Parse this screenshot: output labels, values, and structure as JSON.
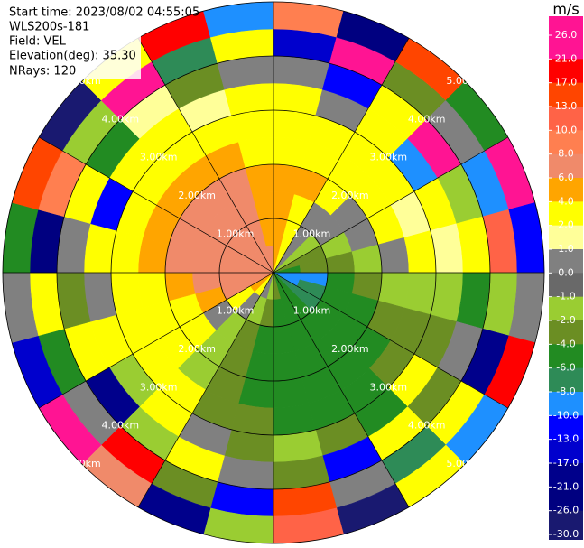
{
  "header": {
    "start_time": "Start time: 2023/08/02 04:55:05",
    "instrument": "WLS200s-181",
    "field": "Field: VEL",
    "elevation": "Elevation(deg): 35.30",
    "nrays": "NRays: 120"
  },
  "colorbar": {
    "unit": "m/s",
    "ticks": [
      {
        "value": 26,
        "label": "26.0"
      },
      {
        "value": 21,
        "label": "21.0"
      },
      {
        "value": 17,
        "label": "17.0"
      },
      {
        "value": 13,
        "label": "13.0"
      },
      {
        "value": 10,
        "label": "10.0"
      },
      {
        "value": 8,
        "label": "8.0"
      },
      {
        "value": 6,
        "label": "6.0"
      },
      {
        "value": 4,
        "label": "4.0"
      },
      {
        "value": 2,
        "label": "2.0"
      },
      {
        "value": 1,
        "label": "1.0"
      },
      {
        "value": 0,
        "label": "0.0"
      },
      {
        "value": -1,
        "label": "-1.0"
      },
      {
        "value": -2,
        "label": "-2.0"
      },
      {
        "value": -4,
        "label": "-4.0"
      },
      {
        "value": -6,
        "label": "-6.0"
      },
      {
        "value": -8,
        "label": "-8.0"
      },
      {
        "value": -10,
        "label": "-10.0"
      },
      {
        "value": -13,
        "label": "-13.0"
      },
      {
        "value": -17,
        "label": "-17.0"
      },
      {
        "value": -21,
        "label": "-21.0"
      },
      {
        "value": -26,
        "label": "-26.0"
      },
      {
        "value": -30,
        "label": "-30.0"
      }
    ],
    "colors": [
      "#ff1493",
      "#ff0000",
      "#ff4500",
      "#ff6347",
      "#ff7f50",
      "#f08a6a",
      "#ffa500",
      "#ffff00",
      "#ffff99",
      "#808080",
      "#696969",
      "#9acd32",
      "#6b8e23",
      "#228b22",
      "#2e8b57",
      "#1e90ff",
      "#0000ff",
      "#0000cd",
      "#00008b",
      "#000080",
      "#191970"
    ]
  },
  "range_rings": [
    {
      "value": 1,
      "label": "1.00km"
    },
    {
      "value": 2,
      "label": "2.00km"
    },
    {
      "value": 3,
      "label": "3.00km"
    },
    {
      "value": 4,
      "label": "4.00km"
    },
    {
      "value": 5,
      "label": "5.00km"
    }
  ],
  "field": {
    "values": [
      [
        5,
        3,
        0.5,
        -1.5,
        -3,
        -5,
        -9,
        -9,
        -7,
        -5,
        -5,
        -3,
        -1.5,
        0.5,
        3,
        5,
        7,
        7,
        7,
        7,
        7,
        7,
        7,
        7
      ],
      [
        5,
        3,
        0.5,
        -1.5,
        -3,
        -3,
        -9,
        -7,
        -7,
        -5,
        -5,
        -5,
        -3,
        -1.5,
        0.5,
        3,
        7,
        7,
        7,
        7,
        7,
        7,
        7,
        5
      ],
      [
        5,
        3,
        0.5,
        0.5,
        -1.5,
        -3,
        -5,
        -5,
        -5,
        -5,
        -5,
        -5,
        -5,
        -3,
        -1.5,
        0.5,
        5,
        7,
        7,
        7,
        7,
        7,
        7,
        5
      ],
      [
        5,
        5,
        3,
        0.5,
        0.5,
        -1.5,
        -3,
        -5,
        -5,
        -5,
        -5,
        -5,
        -5,
        -3,
        -1.5,
        3,
        3,
        5,
        7,
        7,
        7,
        7,
        7,
        5
      ],
      [
        3,
        3,
        3,
        3,
        3,
        0.5,
        -1.5,
        -3,
        -5,
        -5,
        -5,
        -5,
        -5,
        -3,
        -1.5,
        3,
        3,
        3,
        5,
        5,
        5,
        5,
        5,
        3
      ],
      [
        3,
        3,
        3,
        3,
        1.5,
        3,
        -1.5,
        -3,
        -3,
        -5,
        -5,
        -5,
        -3,
        -3,
        3,
        3,
        3,
        3,
        3,
        3,
        3,
        3,
        3,
        3
      ],
      [
        3,
        0.5,
        3,
        -9,
        3,
        1.5,
        -1.5,
        -3,
        3,
        -5,
        -3,
        -1.5,
        -3,
        0.5,
        3,
        -1.5,
        3,
        0.5,
        3,
        -12,
        3,
        3,
        1.5,
        3
      ],
      [
        0.5,
        -12,
        3,
        22,
        -1.5,
        3,
        -5,
        0.5,
        -3,
        3,
        -12,
        -3,
        0.5,
        3,
        -1.5,
        -19,
        3,
        -3,
        0.5,
        3,
        -5,
        1.5,
        -3,
        0.5
      ],
      [
        -15,
        24,
        -3,
        0.5,
        -9,
        11,
        -1.5,
        -19,
        3,
        -7,
        0.5,
        15,
        -12,
        -3,
        19,
        0.5,
        -5,
        3,
        -23,
        9,
        -1.5,
        24,
        -7,
        3
      ],
      [
        9,
        -23,
        15,
        -5,
        24,
        -12,
        0.5,
        19,
        -9,
        3,
        -27,
        11,
        -1.5,
        -19,
        7,
        24,
        -15,
        0.5,
        -5,
        15,
        -28,
        3,
        19,
        -9
      ]
    ]
  }
}
